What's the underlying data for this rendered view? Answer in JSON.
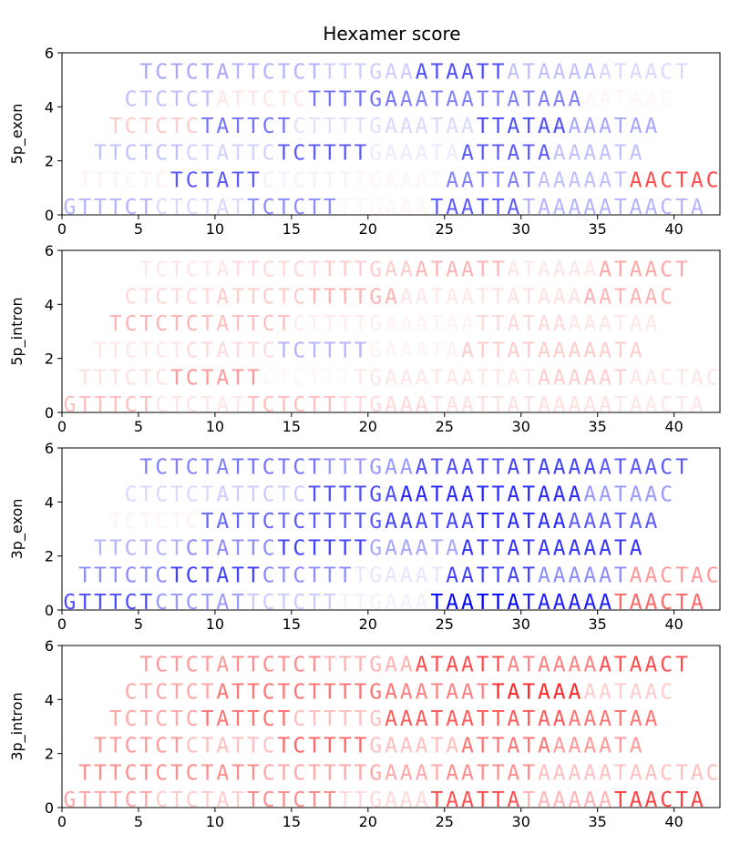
{
  "chart_data": {
    "type": "sequence-logo",
    "title": "Hexamer score",
    "x_ticks": [
      0,
      5,
      10,
      15,
      20,
      25,
      30,
      35,
      40
    ],
    "y_ticks": [
      0,
      2,
      4,
      6
    ],
    "xlim": [
      0,
      43
    ],
    "ylim": [
      0,
      6
    ],
    "colors": {
      "positive": "#ff0000",
      "negative": "#0000ff"
    },
    "sequences": [
      {
        "y": 0,
        "x_start": 0,
        "text": "GTTTCTCTCTATTCTCTTTTGAAATAATTATAAAAATAACTA"
      },
      {
        "y": 1,
        "x_start": 1,
        "text": "TTTCTCTCTATTCTCTTTTGAAATAATTATAAAAATAACTAC"
      },
      {
        "y": 2,
        "x_start": 2,
        "text": "TTCTCTCTATTCTCTTTTGAAATAATTATAAAAATA"
      },
      {
        "y": 3,
        "x_start": 3,
        "text": "TCTCTCTATTCTCTTTTGAAATAATTATAAAAATAA"
      },
      {
        "y": 4,
        "x_start": 4,
        "text": "CTCTCTATTCTCTTTTGAAATAATTATAAAAATAAC"
      },
      {
        "y": 5,
        "x_start": 5,
        "text": "TCTCTATTCTCTTTTGAAATAATTATAAAAATAACT"
      }
    ],
    "panels": [
      {
        "ylabel": "5p_exon",
        "segments": [
          [
            [
              0,
              -0.3
            ],
            [
              6,
              -0.15
            ],
            [
              12,
              -0.45
            ],
            [
              18,
              0.0
            ],
            [
              24,
              -0.65
            ],
            [
              30,
              -0.3
            ],
            [
              36,
              -0.3
            ]
          ],
          [
            [
              0,
              0.05
            ],
            [
              6,
              -0.65
            ],
            [
              12,
              -0.05
            ],
            [
              18,
              0.03
            ],
            [
              24,
              -0.5
            ],
            [
              30,
              -0.25
            ],
            [
              36,
              0.7
            ]
          ],
          [
            [
              0,
              -0.25
            ],
            [
              6,
              -0.18
            ],
            [
              12,
              -0.65
            ],
            [
              18,
              -0.08
            ],
            [
              24,
              -0.65
            ],
            [
              30,
              -0.25
            ]
          ],
          [
            [
              0,
              0.2
            ],
            [
              6,
              -0.55
            ],
            [
              12,
              -0.12
            ],
            [
              18,
              -0.15
            ],
            [
              24,
              -0.7
            ],
            [
              30,
              -0.35
            ]
          ],
          [
            [
              0,
              -0.25
            ],
            [
              6,
              0.1
            ],
            [
              12,
              -0.55
            ],
            [
              18,
              -0.5
            ],
            [
              24,
              -0.5
            ],
            [
              30,
              0.03
            ]
          ],
          [
            [
              0,
              -0.35
            ],
            [
              6,
              -0.3
            ],
            [
              12,
              -0.2
            ],
            [
              18,
              -0.7
            ],
            [
              24,
              -0.25
            ],
            [
              30,
              -0.15
            ]
          ]
        ]
      },
      {
        "ylabel": "5p_intron",
        "segments": [
          [
            [
              0,
              0.25
            ],
            [
              6,
              0.1
            ],
            [
              12,
              0.25
            ],
            [
              18,
              0.15
            ],
            [
              24,
              0.12
            ],
            [
              30,
              0.12
            ],
            [
              36,
              0.1
            ]
          ],
          [
            [
              0,
              0.12
            ],
            [
              6,
              0.4
            ],
            [
              12,
              0.03
            ],
            [
              18,
              0.1
            ],
            [
              24,
              0.1
            ],
            [
              30,
              0.2
            ],
            [
              36,
              0.1
            ]
          ],
          [
            [
              0,
              0.1
            ],
            [
              6,
              0.15
            ],
            [
              12,
              -0.3
            ],
            [
              18,
              0.05
            ],
            [
              24,
              0.2
            ],
            [
              30,
              0.2
            ]
          ],
          [
            [
              0,
              0.3
            ],
            [
              6,
              0.25
            ],
            [
              12,
              0.07
            ],
            [
              18,
              0.05
            ],
            [
              24,
              0.15
            ],
            [
              30,
              0.1
            ]
          ],
          [
            [
              0,
              0.15
            ],
            [
              6,
              0.2
            ],
            [
              12,
              0.3
            ],
            [
              18,
              0.1
            ],
            [
              24,
              0.12
            ],
            [
              30,
              0.3
            ]
          ],
          [
            [
              0,
              0.1
            ],
            [
              6,
              0.15
            ],
            [
              12,
              0.2
            ],
            [
              18,
              0.3
            ],
            [
              24,
              0.1
            ],
            [
              30,
              0.35
            ]
          ]
        ]
      },
      {
        "ylabel": "3p_exon",
        "segments": [
          [
            [
              0,
              -0.7
            ],
            [
              6,
              -0.4
            ],
            [
              12,
              -0.2
            ],
            [
              18,
              -0.05
            ],
            [
              24,
              -1.0
            ],
            [
              30,
              -0.9
            ],
            [
              36,
              0.6
            ]
          ],
          [
            [
              0,
              -0.45
            ],
            [
              6,
              -0.75
            ],
            [
              12,
              -0.45
            ],
            [
              18,
              -0.1
            ],
            [
              24,
              -0.75
            ],
            [
              30,
              -0.45
            ],
            [
              36,
              0.4
            ]
          ],
          [
            [
              0,
              -0.3
            ],
            [
              6,
              -0.45
            ],
            [
              12,
              -0.75
            ],
            [
              18,
              -0.35
            ],
            [
              24,
              -0.8
            ],
            [
              30,
              -0.8
            ]
          ],
          [
            [
              0,
              0.05
            ],
            [
              6,
              -0.6
            ],
            [
              12,
              -0.65
            ],
            [
              18,
              -0.75
            ],
            [
              24,
              -0.85
            ],
            [
              30,
              -0.65
            ]
          ],
          [
            [
              0,
              -0.15
            ],
            [
              6,
              -0.2
            ],
            [
              12,
              -0.7
            ],
            [
              18,
              -0.85
            ],
            [
              24,
              -0.85
            ],
            [
              30,
              -0.4
            ]
          ],
          [
            [
              0,
              -0.5
            ],
            [
              6,
              -0.55
            ],
            [
              12,
              -0.4
            ],
            [
              18,
              -0.7
            ],
            [
              24,
              -0.75
            ],
            [
              30,
              -0.65
            ]
          ]
        ]
      },
      {
        "ylabel": "3p_intron",
        "segments": [
          [
            [
              0,
              0.35
            ],
            [
              6,
              0.2
            ],
            [
              12,
              0.45
            ],
            [
              18,
              0.15
            ],
            [
              24,
              0.7
            ],
            [
              30,
              0.3
            ],
            [
              36,
              0.75
            ]
          ],
          [
            [
              0,
              0.45
            ],
            [
              6,
              0.45
            ],
            [
              12,
              0.35
            ],
            [
              18,
              0.35
            ],
            [
              24,
              0.45
            ],
            [
              30,
              0.25
            ],
            [
              36,
              0.25
            ]
          ],
          [
            [
              0,
              0.4
            ],
            [
              6,
              0.25
            ],
            [
              12,
              0.6
            ],
            [
              18,
              0.25
            ],
            [
              24,
              0.55
            ],
            [
              30,
              0.4
            ]
          ],
          [
            [
              0,
              0.35
            ],
            [
              6,
              0.55
            ],
            [
              12,
              0.25
            ],
            [
              18,
              0.65
            ],
            [
              24,
              0.65
            ],
            [
              30,
              0.55
            ]
          ],
          [
            [
              0,
              0.35
            ],
            [
              6,
              0.55
            ],
            [
              12,
              0.55
            ],
            [
              18,
              0.5
            ],
            [
              24,
              0.85
            ],
            [
              30,
              0.2
            ]
          ],
          [
            [
              0,
              0.4
            ],
            [
              6,
              0.45
            ],
            [
              12,
              0.3
            ],
            [
              18,
              0.7
            ],
            [
              24,
              0.5
            ],
            [
              30,
              0.7
            ]
          ]
        ]
      }
    ]
  }
}
